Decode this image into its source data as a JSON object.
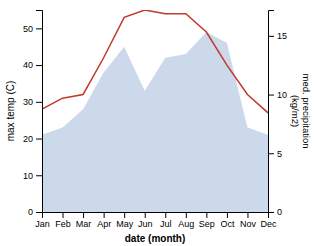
{
  "chart_data": {
    "type": "line",
    "x": [
      1,
      2,
      3,
      4,
      5,
      6,
      7,
      8,
      9,
      10,
      11,
      12
    ],
    "xlim": [
      1,
      12
    ],
    "xticks": [
      {
        "value": 1,
        "label": "Jan"
      },
      {
        "value": 2,
        "label": "Feb"
      },
      {
        "value": 3,
        "label": "Mar"
      },
      {
        "value": 4,
        "label": "Apr"
      },
      {
        "value": 5,
        "label": "May"
      },
      {
        "value": 6,
        "label": "Jun"
      },
      {
        "value": 7,
        "label": "Jul"
      },
      {
        "value": 8,
        "label": "Aug"
      },
      {
        "value": 9,
        "label": "Sep"
      },
      {
        "value": 10,
        "label": "Oct"
      },
      {
        "value": 11,
        "label": "Nov"
      },
      {
        "value": 12,
        "label": "Dec"
      }
    ],
    "ylim": [
      0,
      55
    ],
    "yticks": [
      0,
      10,
      20,
      30,
      40,
      50
    ],
    "y2lim": [
      0,
      17.2
    ],
    "y2ticks": [
      0,
      5,
      10,
      15
    ],
    "xlabel": "date (month)",
    "ylabel": "max temp (C)",
    "y2label": "med. precipitation\n(kg/m2)",
    "series": [
      {
        "type": "area",
        "color": "#b0c4de",
        "values": [
          21,
          23,
          28,
          38,
          45,
          33,
          42,
          43,
          49,
          46,
          23,
          21
        ]
      },
      {
        "type": "line",
        "color": "#c0392b",
        "values": [
          28,
          31,
          32,
          42,
          53,
          55,
          54,
          54,
          49,
          40,
          32,
          27
        ]
      }
    ]
  }
}
